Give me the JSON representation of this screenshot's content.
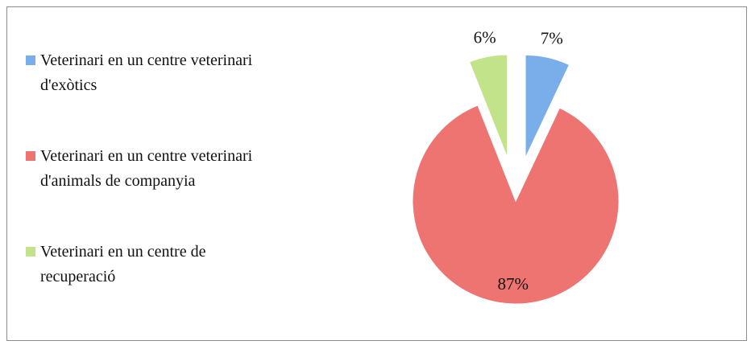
{
  "chart_data": {
    "type": "pie",
    "categories": [
      "Veterinari en un centre veterinari d'exòtics",
      "Veterinari en un centre veterinari d'animals de companyia",
      "Veterinari en un centre de recuperació"
    ],
    "values": [
      7,
      87,
      6
    ],
    "value_labels": [
      "7%",
      "87%",
      "6%"
    ],
    "colors": [
      "#7aaeea",
      "#ee7472",
      "#c2e389"
    ],
    "legend": "left"
  }
}
